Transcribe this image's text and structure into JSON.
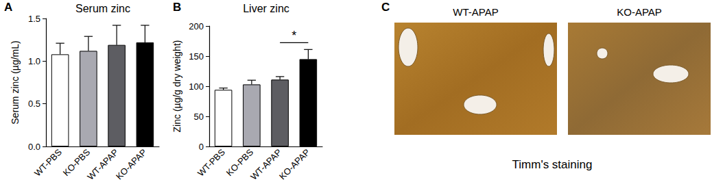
{
  "chart_data": [
    {
      "type": "bar",
      "panel_label": "A",
      "title": "Serum zinc",
      "y_label": "Serum zinc (µg/mL)",
      "categories": [
        "WT-PBS",
        "KO-PBS",
        "WT-APAP",
        "KO-APAP"
      ],
      "values": [
        1.08,
        1.12,
        1.19,
        1.22
      ],
      "errors": [
        0.13,
        0.17,
        0.23,
        0.2
      ],
      "colors": [
        "#ffffff",
        "#a9a9b1",
        "#5d5d62",
        "#000000"
      ],
      "ylim": [
        0,
        1.5
      ],
      "yticks": [
        {
          "value": 0,
          "label": "0.0"
        },
        {
          "value": 0.5,
          "label": "0.5"
        },
        {
          "value": 1,
          "label": "1.0"
        },
        {
          "value": 1.5,
          "label": "1.5"
        }
      ],
      "grid": false
    },
    {
      "type": "bar",
      "panel_label": "B",
      "title": "Liver zinc",
      "y_label": "Zinc (µg/g dry weight)",
      "categories": [
        "WT-PBS",
        "KO-PBS",
        "WT-APAP",
        "KO-APAP"
      ],
      "values": [
        94,
        103,
        111,
        145
      ],
      "errors": [
        3,
        7,
        5,
        16
      ],
      "colors": [
        "#ffffff",
        "#a9a9b1",
        "#5d5d62",
        "#000000"
      ],
      "ylim": [
        0,
        200
      ],
      "yticks": [
        0,
        50,
        100,
        150,
        200
      ],
      "grid": false,
      "annotations": [
        {
          "text": "*",
          "from": "WT-APAP",
          "to": "KO-APAP"
        }
      ]
    }
  ],
  "images": {
    "panel_label": "C",
    "labels": [
      "WT-APAP",
      "KO-APAP"
    ],
    "caption": "Timm's staining"
  }
}
